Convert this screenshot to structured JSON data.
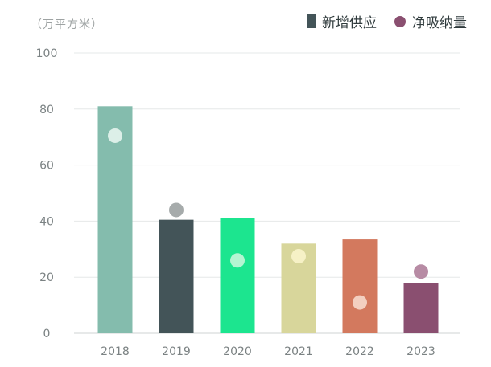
{
  "chart_data": {
    "type": "bar",
    "unit_label": "（万平方米）",
    "categories": [
      "2018",
      "2019",
      "2020",
      "2021",
      "2022",
      "2023"
    ],
    "series": [
      {
        "name": "新增供应",
        "kind": "bar",
        "values": [
          81,
          40.5,
          41,
          32,
          33.5,
          18
        ],
        "colors": [
          "#84bcad",
          "#435458",
          "#1ce58f",
          "#d8d69b",
          "#d3795e",
          "#8a4f70"
        ],
        "legend_color": "#435458"
      },
      {
        "name": "净吸纳量",
        "kind": "dot",
        "values": [
          70.5,
          44,
          26,
          27.5,
          11,
          22
        ],
        "colors": [
          "#dcefe8",
          "#a6abab",
          "#b4f5d2",
          "#f6f1c6",
          "#f3cfc0",
          "#b78ba4"
        ],
        "legend_color": "#8a4f70"
      }
    ],
    "y_ticks": [
      "0",
      "20",
      "40",
      "60",
      "80",
      "100"
    ],
    "ylim": [
      0,
      100
    ],
    "grid": true,
    "legend_position": "top-right"
  }
}
